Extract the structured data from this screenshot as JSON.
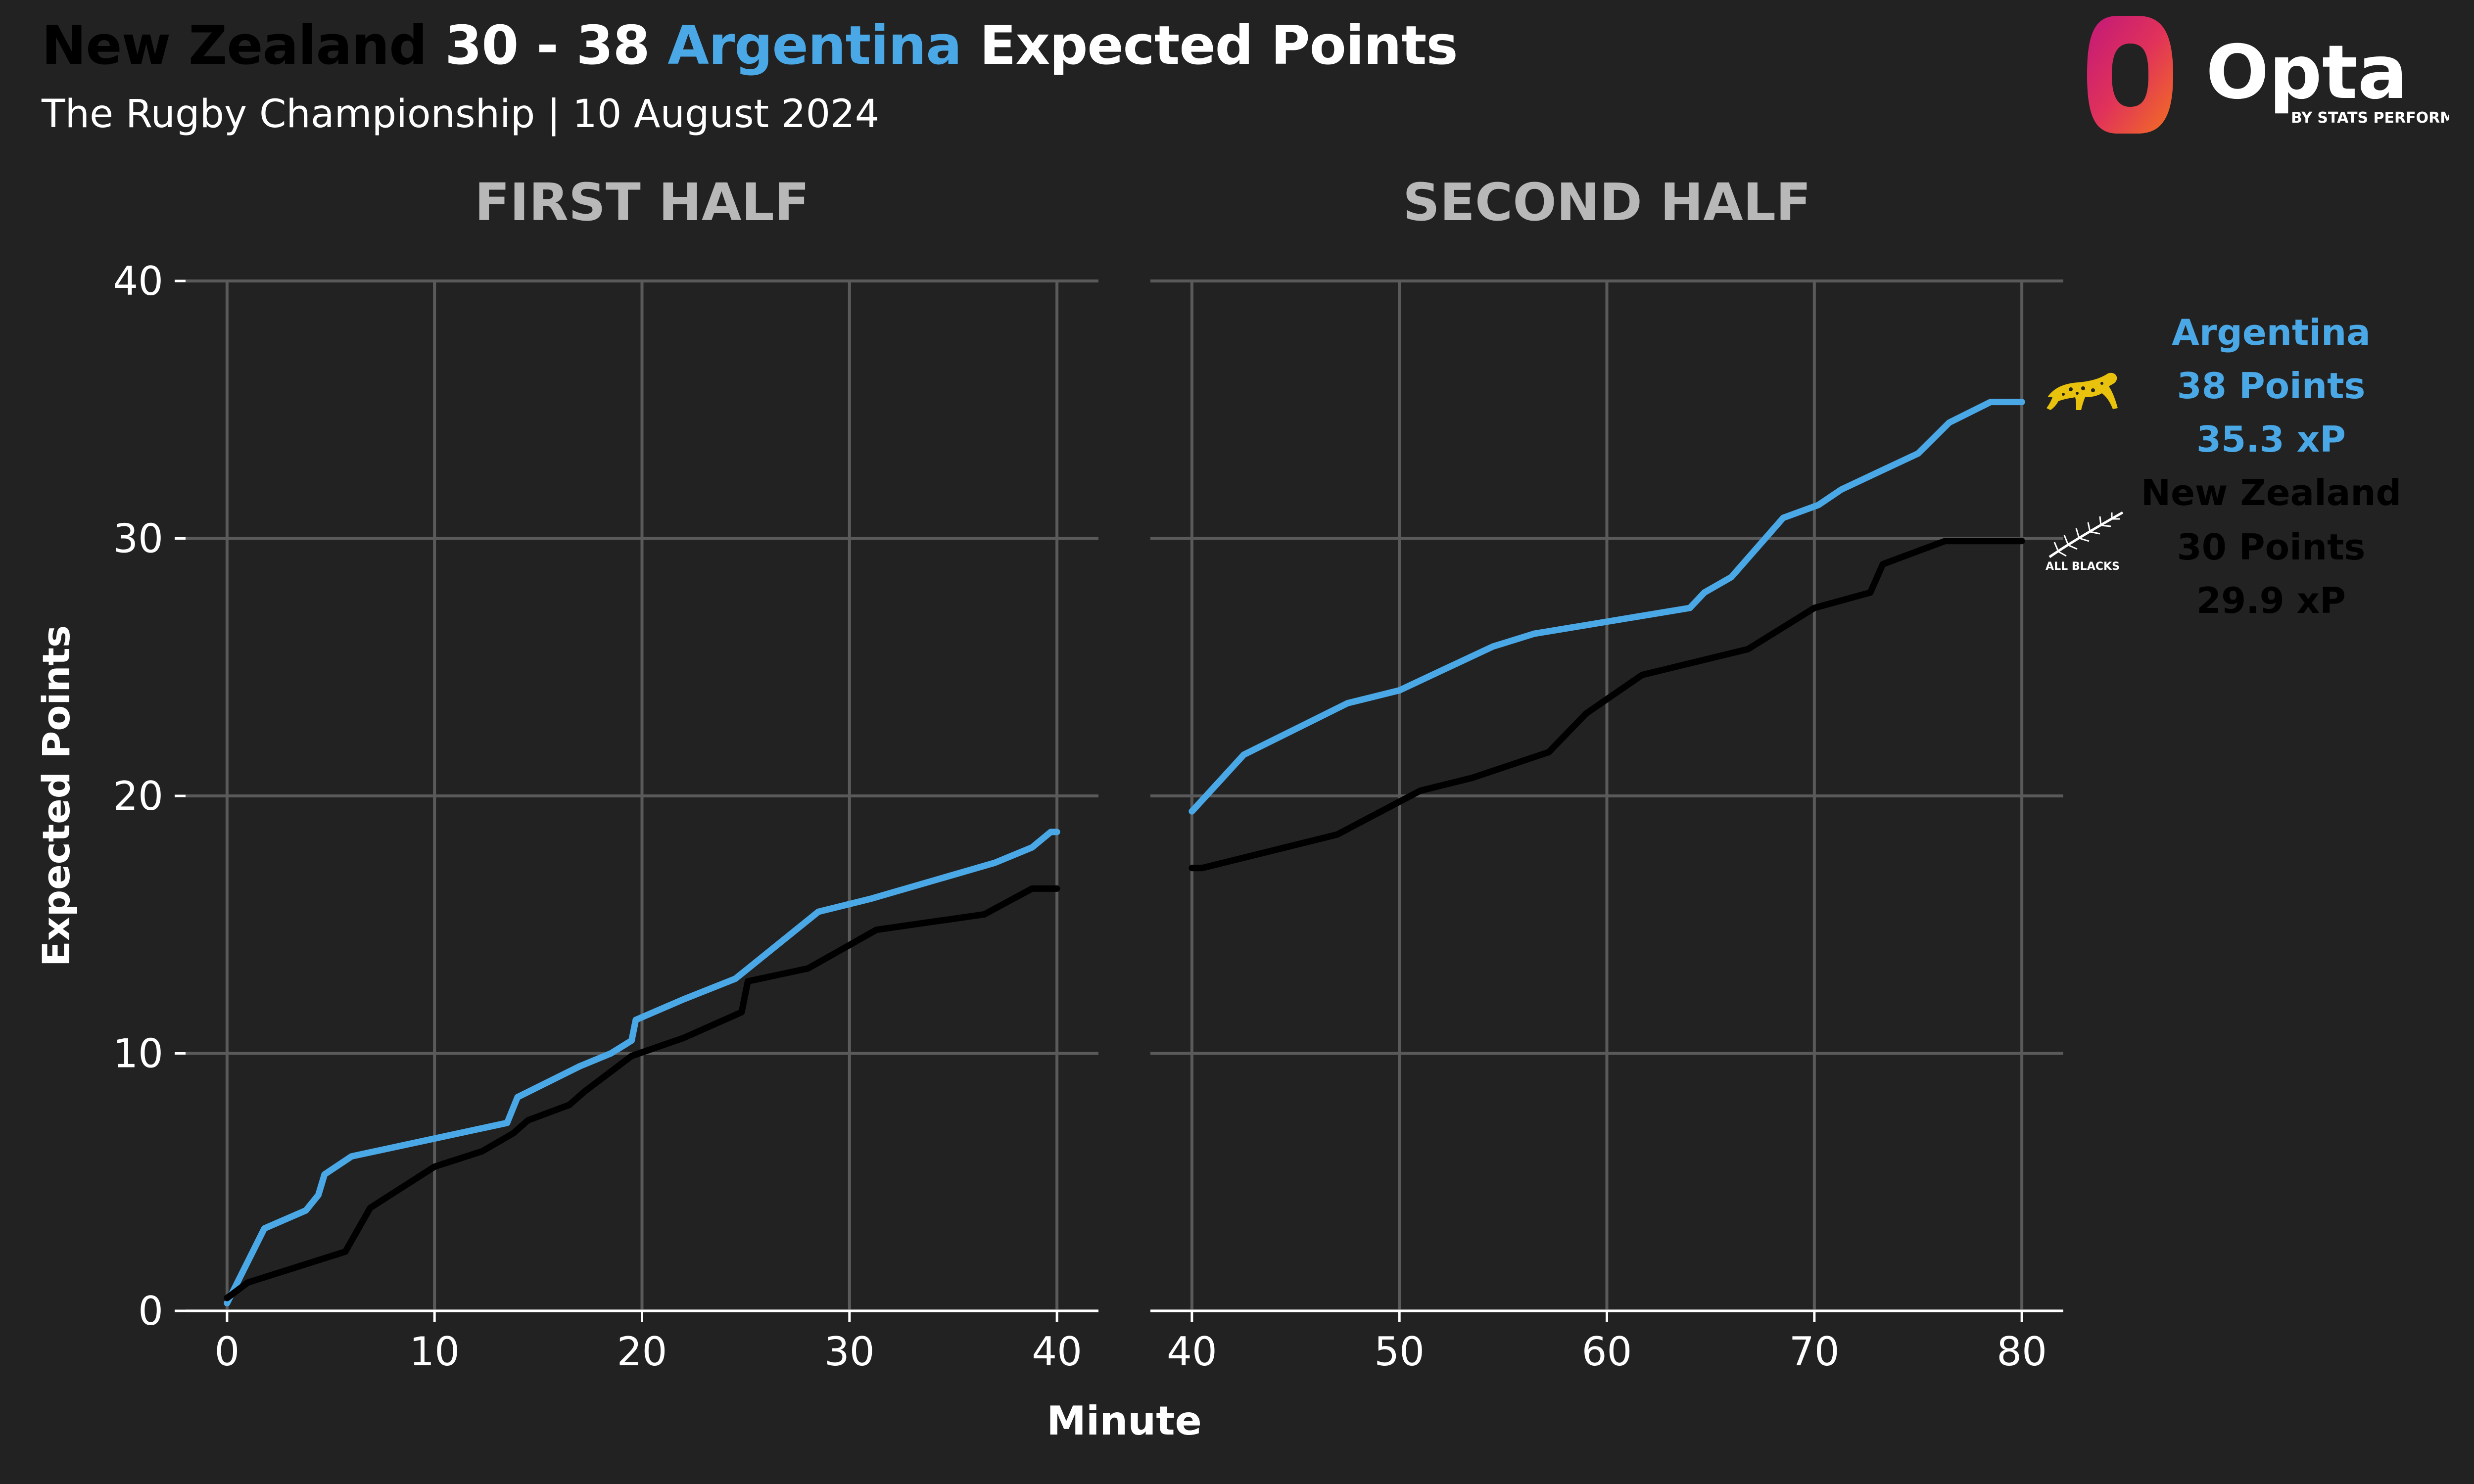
{
  "title": {
    "home_team": "New Zealand",
    "score": "30 - 38",
    "away_team": "Argentina",
    "suffix": "Expected Points"
  },
  "subtitle": "The Rugby Championship | 10 August 2024",
  "brand": {
    "name": "Opta",
    "tagline": "BY STATS PERFORM",
    "crest_nz_text": "ALL BLACKS"
  },
  "colors": {
    "background": "#222222",
    "argentina": "#4aa8e6",
    "new_zealand": "#000000",
    "grid": "#5a5a5a",
    "text": "#ffffff",
    "panel_title": "#b8b8b8"
  },
  "legend": [
    {
      "team": "Argentina",
      "points": "38 Points",
      "xp": "35.3 xP",
      "color": "#4aa8e6"
    },
    {
      "team": "New Zealand",
      "points": "30 Points",
      "xp": "29.9 xP",
      "color": "#000000"
    }
  ],
  "chart_data": [
    {
      "type": "line",
      "title": "FIRST HALF",
      "xlabel": "Minute",
      "ylabel": "Expected Points",
      "xlim": [
        -2,
        42
      ],
      "ylim": [
        0,
        40
      ],
      "xticks": [
        0,
        10,
        20,
        30,
        40
      ],
      "yticks": [
        0,
        10,
        20,
        30,
        40
      ],
      "grid": true,
      "series": [
        {
          "name": "Argentina",
          "color": "#4aa8e6",
          "x": [
            0,
            1.8,
            3.8,
            4.4,
            4.7,
            6,
            13.5,
            14,
            17,
            18.5,
            19.5,
            19.7,
            22,
            24.5,
            28.5,
            31,
            37,
            38.8,
            39.7,
            40
          ],
          "y": [
            0.3,
            3.2,
            3.9,
            4.5,
            5.3,
            6.0,
            7.3,
            8.3,
            9.5,
            10.0,
            10.5,
            11.3,
            12.1,
            12.9,
            15.5,
            16.0,
            17.4,
            18.0,
            18.6,
            18.6
          ]
        },
        {
          "name": "New Zealand",
          "color": "#000000",
          "x": [
            0,
            1,
            5.7,
            6.9,
            10,
            12.3,
            13.8,
            14.5,
            16.5,
            17.2,
            19.5,
            22,
            24.8,
            25.1,
            28,
            31.3,
            36.5,
            38.8,
            40
          ],
          "y": [
            0.5,
            1.1,
            2.3,
            4.0,
            5.6,
            6.2,
            6.9,
            7.4,
            8.0,
            8.5,
            9.9,
            10.6,
            11.6,
            12.8,
            13.3,
            14.8,
            15.4,
            16.4,
            16.4
          ]
        }
      ]
    },
    {
      "type": "line",
      "title": "SECOND HALF",
      "xlabel": "Minute",
      "xlim": [
        38,
        82
      ],
      "ylim": [
        0,
        40
      ],
      "xticks": [
        40,
        50,
        60,
        70,
        80
      ],
      "yticks": [
        0,
        10,
        20,
        30,
        40
      ],
      "grid": true,
      "series": [
        {
          "name": "Argentina",
          "color": "#4aa8e6",
          "x": [
            40,
            42.5,
            47.5,
            50,
            54.5,
            56.5,
            64,
            64.7,
            66,
            68.5,
            70.2,
            71.3,
            75,
            76.5,
            78.5,
            80
          ],
          "y": [
            19.4,
            21.6,
            23.6,
            24.1,
            25.8,
            26.3,
            27.3,
            27.9,
            28.5,
            30.8,
            31.3,
            31.9,
            33.3,
            34.5,
            35.3,
            35.3
          ]
        },
        {
          "name": "New Zealand",
          "color": "#000000",
          "x": [
            40,
            40.5,
            47,
            51,
            53.5,
            57.2,
            59,
            61.7,
            66.8,
            70,
            72.7,
            73.3,
            76.3,
            80
          ],
          "y": [
            17.2,
            17.2,
            18.5,
            20.2,
            20.7,
            21.7,
            23.2,
            24.7,
            25.7,
            27.3,
            27.9,
            29.0,
            29.9,
            29.9
          ]
        }
      ]
    }
  ]
}
